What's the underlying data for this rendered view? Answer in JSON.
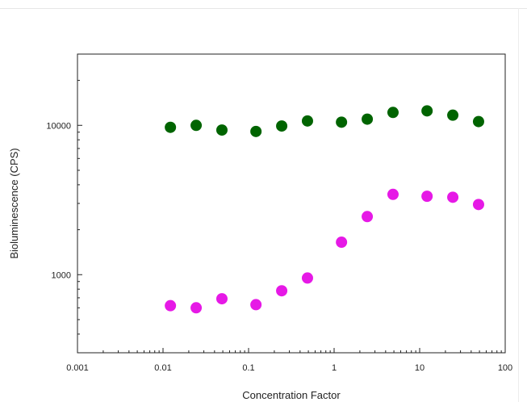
{
  "chart_data": {
    "type": "scatter",
    "title": "",
    "xlabel": "Concentration Factor",
    "ylabel": "Bioluminescence (CPS)",
    "x_scale": "log",
    "y_scale": "log",
    "xlim": [
      0.001,
      100
    ],
    "ylim": [
      300,
      30000
    ],
    "x_ticks": [
      0.001,
      0.01,
      0.1,
      1,
      10,
      100
    ],
    "x_tick_labels": [
      "0.001",
      "0.01",
      "0.1",
      "1",
      "10",
      "100"
    ],
    "y_ticks": [
      1000,
      10000
    ],
    "y_tick_labels": [
      "1000",
      "10000"
    ],
    "grid": false,
    "legend": "none",
    "series": [
      {
        "color": "#006400",
        "x": [
          0.0122,
          0.0244,
          0.0488,
          0.122,
          0.244,
          0.488,
          1.22,
          2.44,
          4.88,
          12.2,
          24.4,
          48.8
        ],
        "y": [
          9700,
          10000,
          9300,
          9100,
          9900,
          10700,
          10500,
          11000,
          12200,
          12500,
          11700,
          10600
        ]
      },
      {
        "color": "#e619e6",
        "x": [
          0.0122,
          0.0244,
          0.0488,
          0.122,
          0.244,
          0.488,
          1.22,
          2.44,
          4.88,
          12.2,
          24.4,
          48.8
        ],
        "y": [
          620,
          600,
          690,
          630,
          780,
          950,
          1650,
          2450,
          3450,
          3350,
          3300,
          2950
        ]
      }
    ]
  }
}
